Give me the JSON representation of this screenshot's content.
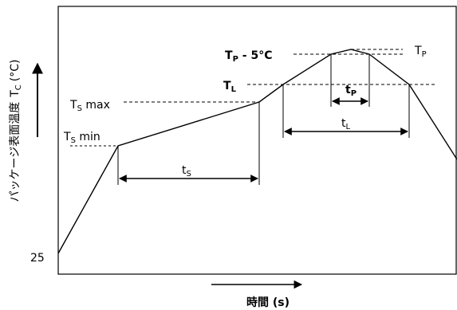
{
  "y_axis_label": "パッケージ表面温度",
  "y_axis_symbol": "T",
  "y_axis_symbol_sub": "C",
  "y_axis_unit": "(°C)",
  "y_origin_value": "25",
  "x_axis_label": "時間 (s)",
  "labels": {
    "tp_minus": {
      "main": "T",
      "sub": "P",
      "rest": " - 5°C"
    },
    "tp": {
      "main": "T",
      "sub": "P"
    },
    "tl": {
      "main": "T",
      "sub": "L"
    },
    "tsmax": {
      "main": "T",
      "sub": "S",
      "rest": " max"
    },
    "tsmin": {
      "main": "T",
      "sub": "S",
      "rest": " min"
    },
    "ts_interval": {
      "main": "t",
      "sub": "S"
    },
    "tl_interval": {
      "main": "t",
      "sub": "L"
    },
    "tp_interval": {
      "main": "t",
      "sub": "P"
    }
  },
  "profile_points": [
    [
      73,
      318
    ],
    [
      148,
      183
    ],
    [
      325,
      128
    ],
    [
      355,
      106
    ],
    [
      415,
      68
    ],
    [
      440,
      62
    ],
    [
      463,
      68
    ],
    [
      513,
      106
    ],
    [
      573,
      200
    ]
  ],
  "colors": {
    "line": "#000000",
    "background": "#ffffff"
  }
}
